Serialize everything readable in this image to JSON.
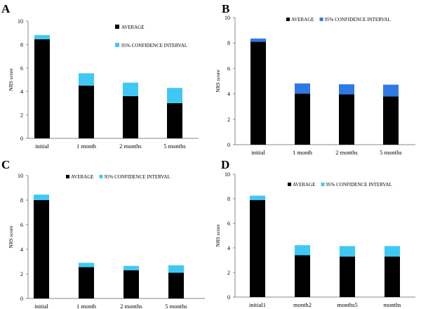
{
  "chart_data": [
    {
      "panel": "A",
      "type": "bar",
      "stacked": true,
      "categories": [
        "initial",
        "1 month",
        "2 months",
        "5 months"
      ],
      "ylabel": "NRS score",
      "xlabel": "",
      "ylim": [
        0,
        10
      ],
      "yticks": [
        0,
        2,
        4,
        6,
        8,
        10
      ],
      "legend": "right",
      "legend_layout": "vertical",
      "series": [
        {
          "name": "AVERAGE",
          "color": "#000000",
          "values": [
            8.45,
            4.5,
            3.6,
            3.0
          ]
        },
        {
          "name": "95% CONFIDENCE INTERVAL",
          "color": "#3fc8f4",
          "values": [
            0.35,
            1.05,
            1.15,
            1.3
          ]
        }
      ]
    },
    {
      "panel": "B",
      "type": "bar",
      "stacked": true,
      "categories": [
        "initial",
        "1 month",
        "2 months",
        "5 months"
      ],
      "ylabel": "NRS score",
      "xlabel": "",
      "ylim": [
        0,
        10
      ],
      "yticks": [
        0,
        2,
        4,
        6,
        8,
        10
      ],
      "legend": "top",
      "legend_layout": "horizontal",
      "series": [
        {
          "name": "AVERAGE",
          "color": "#000000",
          "values": [
            8.1,
            4.02,
            3.95,
            3.8
          ]
        },
        {
          "name": "95% CONFIDENCE INTERVAL",
          "color": "#2f79e6",
          "values": [
            0.25,
            0.8,
            0.8,
            0.92
          ]
        }
      ]
    },
    {
      "panel": "C",
      "type": "bar",
      "stacked": true,
      "categories": [
        "initial",
        "1 month",
        "2 months",
        "5 months"
      ],
      "ylabel": "NRS score",
      "xlabel": "",
      "ylim": [
        0,
        10
      ],
      "yticks": [
        0,
        2,
        4,
        6,
        8,
        10
      ],
      "legend": "top",
      "legend_layout": "horizontal",
      "series": [
        {
          "name": "AVERAGE",
          "color": "#000000",
          "values": [
            8.0,
            2.55,
            2.3,
            2.1
          ]
        },
        {
          "name": "95% CONFIDENCE INTERVAL",
          "color": "#3fc8f4",
          "values": [
            0.45,
            0.35,
            0.35,
            0.6
          ]
        }
      ]
    },
    {
      "panel": "D",
      "type": "bar",
      "stacked": true,
      "categories": [
        "initial1",
        "month2",
        "months5",
        "months"
      ],
      "ylabel": "NRS score",
      "xlabel": "",
      "ylim": [
        0,
        10
      ],
      "yticks": [
        0,
        2,
        4,
        6,
        8,
        10
      ],
      "legend": "top",
      "legend_layout": "horizontal",
      "series": [
        {
          "name": "AVERAGE",
          "color": "#000000",
          "values": [
            7.9,
            3.4,
            3.3,
            3.3
          ]
        },
        {
          "name": "95% CONFIDENCE INTERVAL",
          "color": "#3fc8f4",
          "values": [
            0.35,
            0.82,
            0.85,
            0.85
          ]
        }
      ]
    }
  ]
}
